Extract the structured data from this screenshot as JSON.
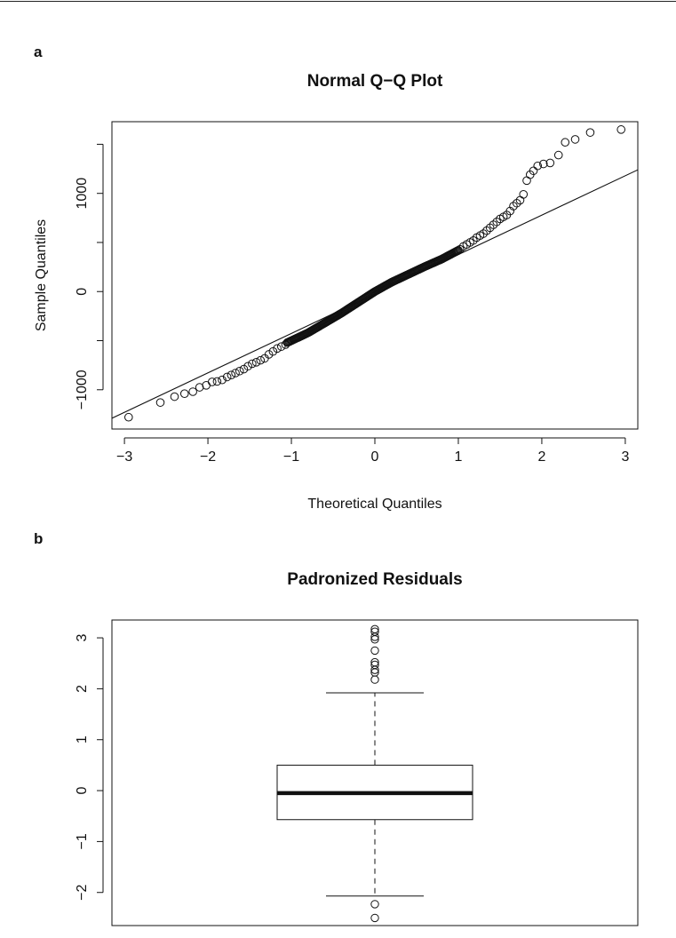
{
  "chart_data": [
    {
      "panel": "a",
      "type": "scatter",
      "title": "Normal Q−Q Plot",
      "xlabel": "Theoretical Quantiles",
      "ylabel": "Sample Quantiles",
      "xlim": [
        -3.15,
        3.15
      ],
      "ylim": [
        -1400,
        1730
      ],
      "x_ticks": [
        -3,
        -2,
        -1,
        0,
        1,
        2,
        3
      ],
      "x_tick_labels": [
        "−3",
        "−2",
        "−1",
        "0",
        "1",
        "2",
        "3"
      ],
      "y_ticks": [
        -1000,
        -500,
        0,
        500,
        1000,
        1500
      ],
      "y_tick_labels": [
        "−1000",
        "",
        "0",
        "",
        "1000",
        ""
      ],
      "reference_line": [
        [
          -3.2,
          -1310
        ],
        [
          3.2,
          1260
        ]
      ],
      "tail_points": [
        [
          -2.95,
          -1280
        ],
        [
          -2.57,
          -1130
        ],
        [
          -2.4,
          -1070
        ],
        [
          -2.28,
          -1040
        ],
        [
          -2.18,
          -1020
        ],
        [
          -2.1,
          -975
        ],
        [
          -2.02,
          -955
        ],
        [
          -1.95,
          -920
        ],
        [
          -1.89,
          -915
        ],
        [
          -1.83,
          -900
        ],
        [
          -1.77,
          -870
        ],
        [
          -1.72,
          -850
        ],
        [
          -1.67,
          -830
        ],
        [
          -1.62,
          -810
        ],
        [
          -1.57,
          -790
        ],
        [
          -1.52,
          -760
        ],
        [
          -1.47,
          -735
        ],
        [
          -1.42,
          -720
        ],
        [
          -1.37,
          -700
        ],
        [
          -1.32,
          -680
        ],
        [
          -1.27,
          -640
        ],
        [
          -1.22,
          -610
        ],
        [
          -1.17,
          -580
        ],
        [
          -1.12,
          -560
        ],
        [
          -1.07,
          -540
        ],
        [
          1.02,
          430
        ],
        [
          1.06,
          460
        ],
        [
          1.1,
          480
        ],
        [
          1.14,
          500
        ],
        [
          1.18,
          520
        ],
        [
          1.22,
          550
        ],
        [
          1.26,
          570
        ],
        [
          1.3,
          590
        ],
        [
          1.34,
          620
        ],
        [
          1.38,
          650
        ],
        [
          1.42,
          680
        ],
        [
          1.46,
          710
        ],
        [
          1.5,
          740
        ],
        [
          1.54,
          760
        ],
        [
          1.58,
          780
        ],
        [
          1.62,
          820
        ],
        [
          1.66,
          870
        ],
        [
          1.7,
          900
        ],
        [
          1.74,
          930
        ],
        [
          1.78,
          990
        ],
        [
          1.82,
          1130
        ],
        [
          1.86,
          1190
        ],
        [
          1.9,
          1230
        ],
        [
          1.95,
          1280
        ],
        [
          2.02,
          1300
        ],
        [
          2.1,
          1310
        ],
        [
          2.2,
          1390
        ],
        [
          2.28,
          1520
        ],
        [
          2.4,
          1550
        ],
        [
          2.58,
          1620
        ],
        [
          2.95,
          1650
        ]
      ],
      "central_band": [
        [
          -1.05,
          -520
        ],
        [
          -0.8,
          -420
        ],
        [
          -0.6,
          -320
        ],
        [
          -0.4,
          -220
        ],
        [
          -0.2,
          -110
        ],
        [
          0,
          0
        ],
        [
          0.2,
          95
        ],
        [
          0.4,
          175
        ],
        [
          0.6,
          255
        ],
        [
          0.8,
          330
        ],
        [
          1.0,
          420
        ]
      ],
      "central_band_count": 200
    },
    {
      "panel": "b",
      "type": "box",
      "title": "Padronized Residuals",
      "ylim": [
        -2.65,
        3.35
      ],
      "y_ticks": [
        -2,
        -1,
        0,
        1,
        2,
        3
      ],
      "y_tick_labels": [
        "−2",
        "−1",
        "0",
        "1",
        "2",
        "3"
      ],
      "whisker_low": -2.07,
      "q1": -0.57,
      "median": -0.05,
      "q3": 0.5,
      "whisker_high": 1.92,
      "outliers": [
        3.17,
        3.12,
        3.02,
        2.97,
        2.75,
        2.52,
        2.47,
        2.37,
        2.32,
        2.18,
        -2.23,
        -2.5
      ]
    }
  ]
}
